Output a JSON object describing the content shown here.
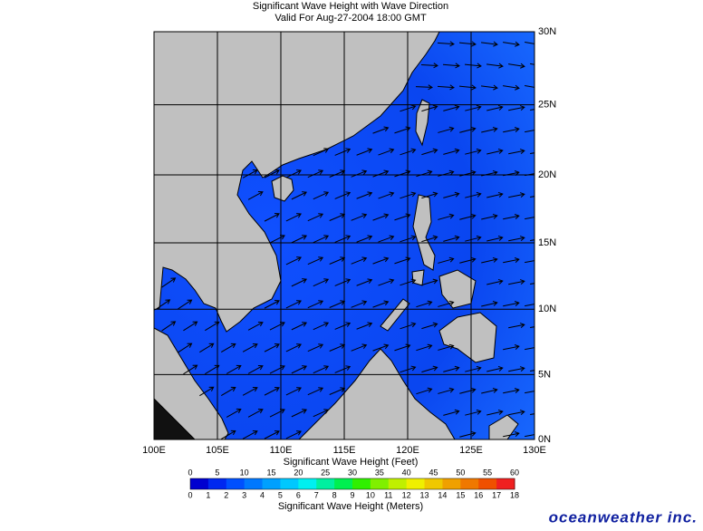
{
  "header": {
    "title": "Significant Wave Height with Wave Direction",
    "subtitle": "Valid For Aug-27-2004 18:00 GMT"
  },
  "map": {
    "lon_range": [
      100,
      130
    ],
    "lat_range": [
      0,
      30
    ],
    "lon_ticks": [
      {
        "value": 100,
        "label": "100E"
      },
      {
        "value": 105,
        "label": "105E"
      },
      {
        "value": 110,
        "label": "110E"
      },
      {
        "value": 115,
        "label": "115E"
      },
      {
        "value": 120,
        "label": "120E"
      },
      {
        "value": 125,
        "label": "125E"
      },
      {
        "value": 130,
        "label": "130E"
      }
    ],
    "lat_ticks": [
      {
        "value": 0,
        "label": "0N"
      },
      {
        "value": 5,
        "label": "5N"
      },
      {
        "value": 10,
        "label": "10N"
      },
      {
        "value": 15,
        "label": "15N"
      },
      {
        "value": 20,
        "label": "20N"
      },
      {
        "value": 25,
        "label": "25N"
      },
      {
        "value": 30,
        "label": "30N"
      }
    ]
  },
  "colorbar": {
    "feet_label": "Significant Wave Height (Feet)",
    "meters_label": "Significant Wave Height (Meters)",
    "feet_range": [
      0,
      60
    ],
    "feet_ticks": [
      0,
      5,
      10,
      15,
      20,
      25,
      30,
      35,
      40,
      45,
      50,
      55,
      60
    ],
    "meters_range": [
      0,
      18
    ],
    "meters_ticks": [
      0,
      1,
      2,
      3,
      4,
      5,
      6,
      7,
      8,
      9,
      10,
      11,
      12,
      13,
      14,
      15,
      16,
      17,
      18
    ],
    "colors": [
      "#0000d0",
      "#0028f0",
      "#0050ff",
      "#0078ff",
      "#00a0ff",
      "#00c8ff",
      "#00f0f0",
      "#00f0a0",
      "#00f050",
      "#30f000",
      "#80f000",
      "#c0f000",
      "#f0f000",
      "#f0c800",
      "#f0a000",
      "#f07800",
      "#f05000",
      "#f02020"
    ]
  },
  "footer": {
    "logo": "oceanweather inc."
  }
}
